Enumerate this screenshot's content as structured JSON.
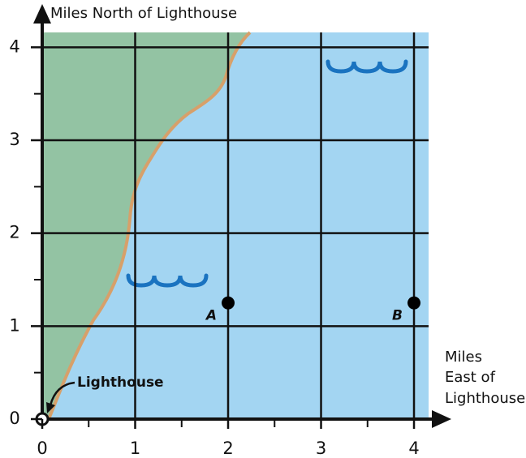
{
  "chart_data": {
    "type": "scatter",
    "y_label": "Miles North of Lighthouse",
    "x_label_lines": [
      "Miles",
      "East of",
      "Lighthouse"
    ],
    "annotation": "Lighthouse",
    "xlim": [
      0,
      4.157
    ],
    "ylim": [
      0,
      4.16
    ],
    "xticks": [
      0,
      1,
      2,
      3,
      4
    ],
    "yticks": [
      0,
      1,
      2,
      3,
      4
    ],
    "x_minor_ticks": [
      0.5,
      1.5,
      2.5,
      3.5
    ],
    "y_minor_ticks": [
      0.5,
      1.5,
      2.5,
      3.5
    ],
    "grid": true,
    "color": "#000000",
    "points": [
      {
        "label": "A",
        "x": 2,
        "y": 1.25
      },
      {
        "label": "B",
        "x": 4,
        "y": 1.25
      }
    ]
  }
}
